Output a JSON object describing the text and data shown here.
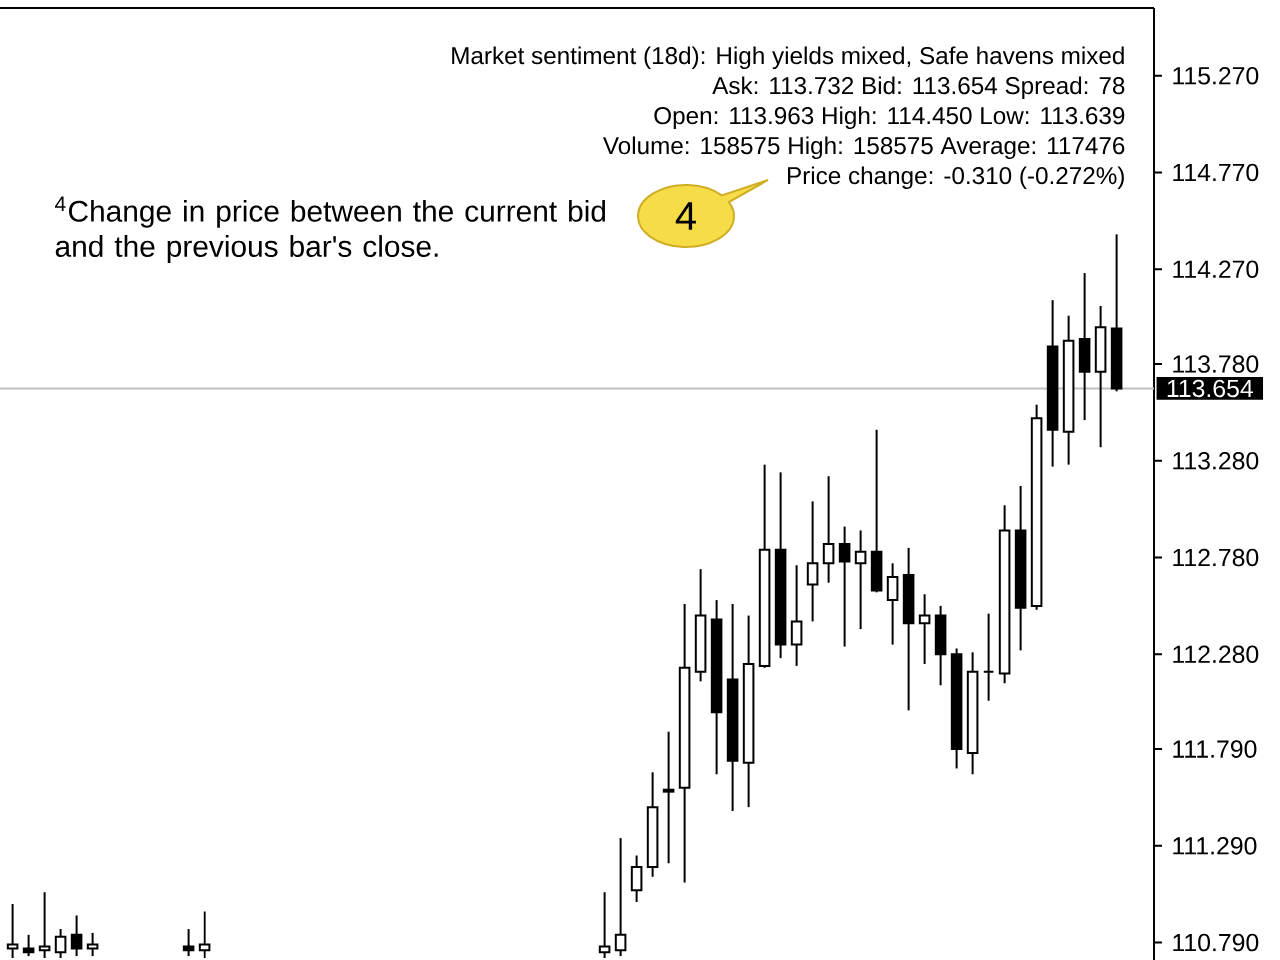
{
  "chart_data": {
    "type": "candlestick",
    "annotations": [
      "Market sentiment (18d): High yields mixed, Safe havens mixed",
      "Ask: 113.732 Bid: 113.654 Spread: 78",
      "Open: 113.963 High: 114.450 Low: 113.639",
      "Volume: 158575 High: 158575 Average: 117476",
      "Price change: -0.310 (-0.272%)",
      "4",
      "$^{4}$Change in price between the current bid and the previous bar's close."
    ],
    "categories": [
      null,
      null,
      null,
      null,
      null,
      null,
      null,
      null,
      null,
      null,
      null,
      null,
      null,
      null,
      null,
      null,
      null,
      null,
      null,
      null,
      null,
      null,
      null,
      null,
      null,
      null,
      null,
      null,
      null,
      null,
      null,
      null,
      null,
      null,
      null,
      null,
      null,
      null,
      null,
      null,
      null,
      null,
      null,
      null,
      null,
      null,
      null,
      null,
      null,
      null,
      null,
      null,
      null,
      null,
      null,
      null,
      null,
      null,
      null,
      null,
      null,
      null,
      null,
      null,
      null,
      null,
      null,
      null,
      null,
      null
    ],
    "ohlc": [
      [
        110.76,
        110.99,
        110.71,
        110.78
      ],
      [
        110.76,
        110.83,
        110.72,
        110.74
      ],
      [
        110.75,
        111.05,
        110.71,
        110.77
      ],
      [
        110.74,
        110.86,
        110.71,
        110.82
      ],
      [
        110.83,
        110.93,
        110.72,
        110.76
      ],
      [
        110.76,
        110.84,
        110.72,
        110.78
      ],
      null,
      null,
      null,
      null,
      null,
      [
        110.77,
        110.86,
        110.72,
        110.75
      ],
      [
        110.75,
        110.95,
        110.71,
        110.78
      ],
      null,
      null,
      null,
      null,
      null,
      null,
      null,
      null,
      null,
      null,
      null,
      null,
      null,
      null,
      null,
      null,
      null,
      null,
      null,
      null,
      null,
      null,
      null,
      null,
      [
        110.74,
        111.05,
        110.71,
        110.77
      ],
      [
        110.75,
        111.33,
        110.72,
        110.83
      ],
      [
        111.06,
        111.24,
        111.0,
        111.18
      ],
      [
        111.18,
        111.67,
        111.13,
        111.49
      ],
      [
        111.57,
        111.88,
        111.2,
        111.58
      ],
      [
        111.59,
        112.54,
        111.1,
        112.21
      ],
      [
        112.19,
        112.72,
        112.14,
        112.48
      ],
      [
        112.46,
        112.56,
        111.66,
        111.98
      ],
      [
        112.15,
        112.54,
        111.47,
        111.73
      ],
      [
        111.72,
        112.48,
        111.49,
        112.23
      ],
      [
        112.22,
        113.26,
        112.21,
        112.82
      ],
      [
        112.82,
        113.22,
        112.26,
        112.33
      ],
      [
        112.33,
        112.74,
        112.22,
        112.45
      ],
      [
        112.64,
        113.07,
        112.45,
        112.75
      ],
      [
        112.75,
        113.2,
        112.65,
        112.85
      ],
      [
        112.85,
        112.94,
        112.32,
        112.76
      ],
      [
        112.75,
        112.92,
        112.41,
        112.81
      ],
      [
        112.81,
        113.44,
        112.6,
        112.61
      ],
      [
        112.56,
        112.75,
        112.33,
        112.68
      ],
      [
        112.69,
        112.83,
        111.99,
        112.44
      ],
      [
        112.44,
        112.59,
        112.23,
        112.48
      ],
      [
        112.48,
        112.53,
        112.12,
        112.28
      ],
      [
        112.28,
        112.31,
        111.69,
        111.79
      ],
      [
        111.77,
        112.29,
        111.66,
        112.19
      ],
      [
        112.19,
        112.49,
        112.04,
        112.19
      ],
      [
        112.18,
        113.05,
        112.13,
        112.92
      ],
      [
        112.92,
        113.15,
        112.3,
        112.52
      ],
      [
        112.53,
        113.57,
        112.51,
        113.5
      ],
      [
        113.87,
        114.11,
        113.25,
        113.44
      ],
      [
        113.43,
        114.03,
        113.26,
        113.9
      ],
      [
        113.91,
        114.25,
        113.49,
        113.74
      ],
      [
        113.74,
        114.08,
        113.35,
        113.97
      ],
      [
        113.963,
        114.45,
        113.639,
        113.654
      ]
    ],
    "color": "#000000",
    "ylim": [
      110.7,
      115.62
    ],
    "yticks": [
      {
        "value": 115.27,
        "label": "115.270"
      },
      {
        "value": 114.77,
        "label": "114.770"
      },
      {
        "value": 114.27,
        "label": "114.270"
      },
      {
        "value": 113.78,
        "label": "113.780"
      },
      {
        "value": 113.28,
        "label": "113.280"
      },
      {
        "value": 112.78,
        "label": "112.780"
      },
      {
        "value": 112.28,
        "label": "112.280"
      },
      {
        "value": 111.79,
        "label": "111.790"
      },
      {
        "value": 111.29,
        "label": "111.290"
      },
      {
        "value": 110.79,
        "label": "110.790"
      }
    ],
    "ref_lines": [
      {
        "axis": "y",
        "value": 113.654,
        "label": "113.654",
        "color": "#c0c0c0"
      }
    ],
    "tick_labels": "y"
  }
}
